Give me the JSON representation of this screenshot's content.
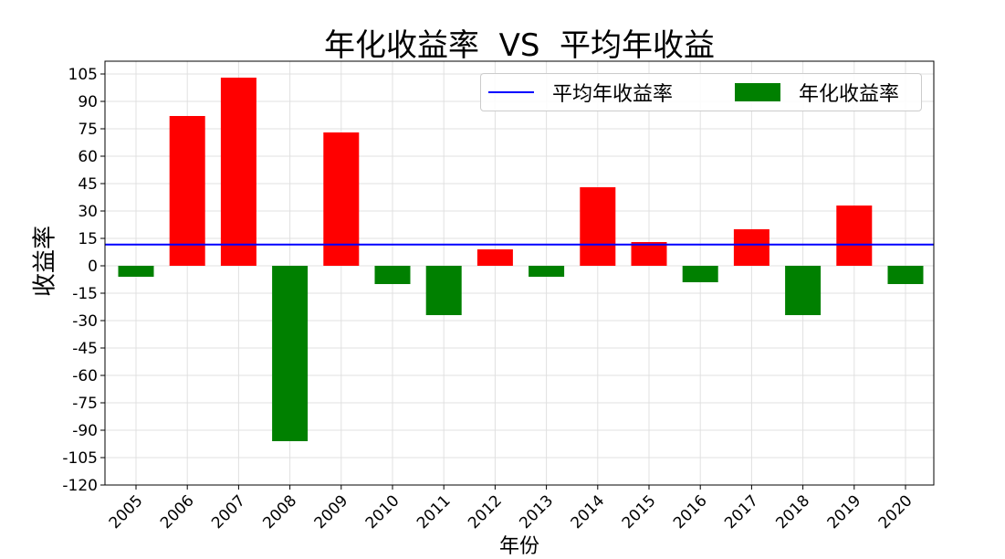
{
  "chart_data": {
    "type": "bar",
    "title": "年化收益率  VS  平均年收益",
    "xlabel": "年份",
    "ylabel": "收益率",
    "categories": [
      "2005",
      "2006",
      "2007",
      "2008",
      "2009",
      "2010",
      "2011",
      "2012",
      "2013",
      "2014",
      "2015",
      "2016",
      "2017",
      "2018",
      "2019",
      "2020"
    ],
    "values": [
      -6,
      82,
      103,
      -96,
      73,
      -10,
      -27,
      9,
      -6,
      43,
      13,
      -9,
      20,
      -27,
      33,
      -10
    ],
    "positive_color": "#ff0000",
    "negative_color": "#008000",
    "ylim": [
      -120,
      112
    ],
    "yticks": [
      -120,
      -105,
      -90,
      -75,
      -60,
      -45,
      -30,
      -15,
      0,
      15,
      30,
      45,
      60,
      75,
      90,
      105
    ],
    "reference_line": {
      "name": "平均年收益率",
      "value": 11.6,
      "color": "#0000ff"
    },
    "bar_series_name": "年化收益率",
    "grid": true,
    "legend_position": "top-right"
  }
}
